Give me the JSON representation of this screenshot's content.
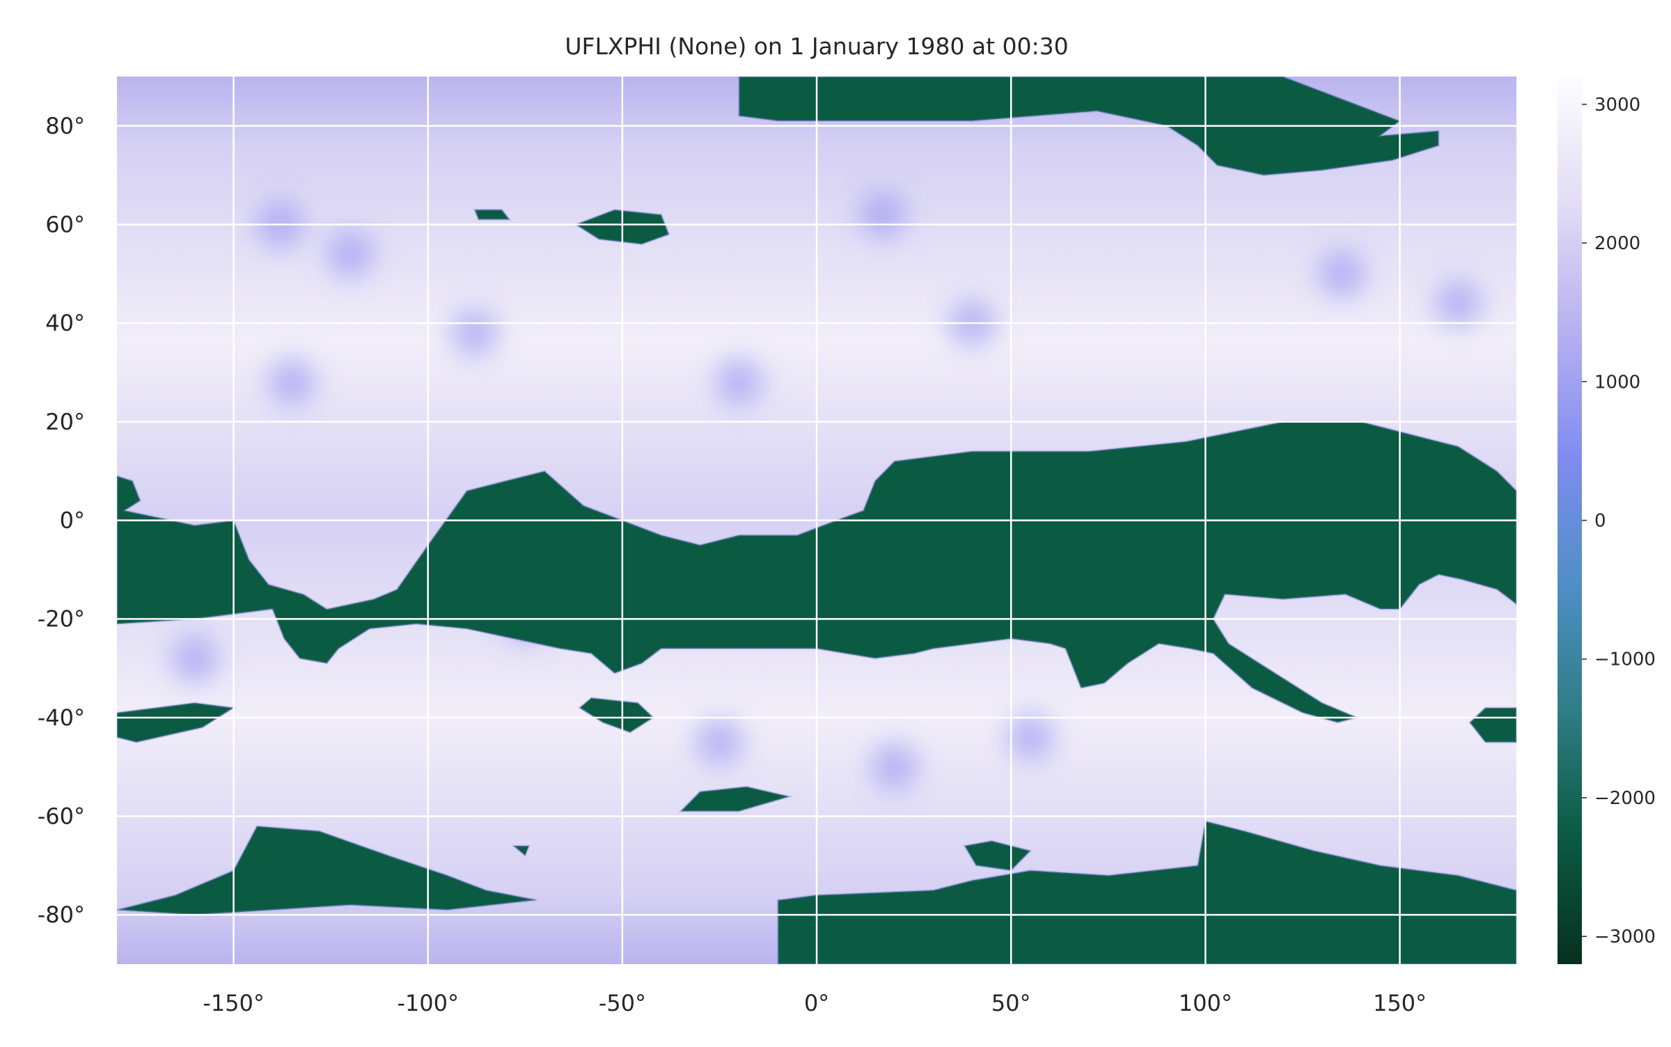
{
  "chart_data": {
    "type": "heatmap",
    "title": "UFLXPHI (None) on 1 January 1980 at 00:30",
    "xlabel": "",
    "ylabel": "",
    "xlim": [
      -180,
      180
    ],
    "ylim": [
      -90,
      90
    ],
    "grid": true,
    "x_ticks": [
      -150,
      -100,
      -50,
      0,
      50,
      100,
      150
    ],
    "x_tick_labels": [
      "-150°",
      "-100°",
      "-50°",
      "0°",
      "50°",
      "100°",
      "150°"
    ],
    "y_ticks": [
      80,
      60,
      40,
      20,
      0,
      -20,
      -40,
      -60,
      -80
    ],
    "y_tick_labels": [
      "80°",
      "60°",
      "40°",
      "20°",
      "0°",
      "-20°",
      "-40°",
      "-60°",
      "-80°"
    ],
    "colorbar": {
      "vmin": -3200,
      "vmax": 3200,
      "ticks": [
        3000,
        2000,
        1000,
        0,
        -1000,
        -2000,
        -3000
      ],
      "tick_labels": [
        "3000",
        "2000",
        "1000",
        "0",
        "−1000",
        "−2000",
        "−3000"
      ],
      "colors": [
        "#06301e",
        "#0b5a42",
        "#2f7d86",
        "#4f8fc6",
        "#7f8cf0",
        "#b7b1f1",
        "#e2ddf4",
        "#fdfcff"
      ]
    },
    "field_colors": {
      "negative": "#0b5a42",
      "positive_low": "#b9b4ee",
      "positive_mid": "#d6d1f3",
      "positive_high": "#f1eef9",
      "accent": "#8e8cf2"
    },
    "negative_regions": [
      {
        "name": "arctic-top",
        "points": [
          [
            -20,
            90
          ],
          [
            120,
            90
          ],
          [
            140,
            84
          ],
          [
            150,
            81
          ],
          [
            145,
            78
          ],
          [
            160,
            79
          ],
          [
            160,
            76
          ],
          [
            148,
            73
          ],
          [
            130,
            71
          ],
          [
            115,
            70
          ],
          [
            103,
            72
          ],
          [
            98,
            76
          ],
          [
            90,
            80
          ],
          [
            72,
            83
          ],
          [
            40,
            81
          ],
          [
            10,
            81
          ],
          [
            -10,
            81
          ],
          [
            -20,
            82
          ]
        ]
      },
      {
        "name": "arctic-blob-a",
        "points": [
          [
            -62,
            60
          ],
          [
            -52,
            63
          ],
          [
            -40,
            62
          ],
          [
            -38,
            58
          ],
          [
            -45,
            56
          ],
          [
            -56,
            57
          ]
        ]
      },
      {
        "name": "arctic-blob-b",
        "points": [
          [
            -88,
            63
          ],
          [
            -81,
            63
          ],
          [
            -79,
            61
          ],
          [
            -87,
            61
          ]
        ]
      },
      {
        "name": "tropical-belt",
        "points": [
          [
            -180,
            9
          ],
          [
            -176,
            8
          ],
          [
            -174,
            4
          ],
          [
            -178,
            2
          ],
          [
            -160,
            -1
          ],
          [
            -150,
            0
          ],
          [
            -146,
            -8
          ],
          [
            -141,
            -13
          ],
          [
            -132,
            -15
          ],
          [
            -126,
            -18
          ],
          [
            -114,
            -16
          ],
          [
            -108,
            -14
          ],
          [
            -100,
            -5
          ],
          [
            -90,
            6
          ],
          [
            -80,
            8
          ],
          [
            -70,
            10
          ],
          [
            -60,
            3
          ],
          [
            -50,
            0
          ],
          [
            -40,
            -3
          ],
          [
            -30,
            -5
          ],
          [
            -20,
            -3
          ],
          [
            -5,
            -3
          ],
          [
            5,
            0
          ],
          [
            12,
            2
          ],
          [
            15,
            8
          ],
          [
            20,
            12
          ],
          [
            40,
            14
          ],
          [
            70,
            14
          ],
          [
            95,
            16
          ],
          [
            120,
            20
          ],
          [
            140,
            20
          ],
          [
            150,
            18
          ],
          [
            165,
            15
          ],
          [
            175,
            10
          ],
          [
            180,
            6
          ],
          [
            180,
            -17
          ],
          [
            175,
            -14
          ],
          [
            166,
            -12
          ],
          [
            160,
            -11
          ],
          [
            155,
            -13
          ],
          [
            150,
            -18
          ],
          [
            145,
            -18
          ],
          [
            136,
            -15
          ],
          [
            120,
            -16
          ],
          [
            105,
            -15
          ],
          [
            102,
            -20
          ],
          [
            106,
            -25
          ],
          [
            118,
            -31
          ],
          [
            130,
            -37
          ],
          [
            139,
            -40
          ],
          [
            134,
            -41
          ],
          [
            125,
            -39
          ],
          [
            112,
            -34
          ],
          [
            102,
            -27
          ],
          [
            96,
            -26
          ],
          [
            88,
            -25
          ],
          [
            80,
            -29
          ],
          [
            74,
            -33
          ],
          [
            68,
            -34
          ],
          [
            64,
            -26
          ],
          [
            60,
            -25
          ],
          [
            50,
            -24
          ],
          [
            40,
            -25
          ],
          [
            30,
            -26
          ],
          [
            25,
            -27
          ],
          [
            15,
            -28
          ],
          [
            0,
            -26
          ],
          [
            -20,
            -26
          ],
          [
            -40,
            -26
          ],
          [
            -45,
            -29
          ],
          [
            -52,
            -31
          ],
          [
            -58,
            -27
          ],
          [
            -66,
            -26
          ],
          [
            -72,
            -25
          ],
          [
            -90,
            -22
          ],
          [
            -103,
            -21
          ],
          [
            -115,
            -22
          ],
          [
            -123,
            -26
          ],
          [
            -126,
            -29
          ],
          [
            -133,
            -28
          ],
          [
            -137,
            -24
          ],
          [
            -140,
            -18
          ],
          [
            -150,
            -19
          ],
          [
            -160,
            -20
          ],
          [
            -180,
            -21
          ]
        ]
      },
      {
        "name": "south-blob-40",
        "points": [
          [
            -58,
            -36
          ],
          [
            -46,
            -37
          ],
          [
            -42,
            -40
          ],
          [
            -48,
            -43
          ],
          [
            -55,
            -41
          ],
          [
            -61,
            -38
          ]
        ]
      },
      {
        "name": "west-edge-40",
        "points": [
          [
            -180,
            -39
          ],
          [
            -160,
            -37
          ],
          [
            -150,
            -38
          ],
          [
            -158,
            -42
          ],
          [
            -175,
            -45
          ],
          [
            -180,
            -44
          ]
        ]
      },
      {
        "name": "east-edge-40",
        "points": [
          [
            180,
            -38
          ],
          [
            172,
            -38
          ],
          [
            168,
            -41
          ],
          [
            172,
            -45
          ],
          [
            180,
            -45
          ]
        ]
      },
      {
        "name": "south-blob-60",
        "points": [
          [
            -30,
            -55
          ],
          [
            -18,
            -54
          ],
          [
            -7,
            -56
          ],
          [
            -20,
            -59
          ],
          [
            -35,
            -59
          ]
        ]
      },
      {
        "name": "south-blob-65",
        "points": [
          [
            -78,
            -66
          ],
          [
            -74,
            -66
          ],
          [
            -75,
            -68
          ]
        ]
      },
      {
        "name": "antarctic-west",
        "points": [
          [
            -180,
            -79
          ],
          [
            -165,
            -76
          ],
          [
            -150,
            -71
          ],
          [
            -144,
            -62
          ],
          [
            -128,
            -63
          ],
          [
            -110,
            -68
          ],
          [
            -95,
            -72
          ],
          [
            -85,
            -75
          ],
          [
            -72,
            -77
          ],
          [
            -95,
            -79
          ],
          [
            -120,
            -78
          ],
          [
            -140,
            -79
          ],
          [
            -160,
            -80
          ]
        ]
      },
      {
        "name": "antarctic-east",
        "points": [
          [
            -10,
            -77
          ],
          [
            0,
            -76
          ],
          [
            30,
            -75
          ],
          [
            40,
            -73
          ],
          [
            55,
            -71
          ],
          [
            75,
            -72
          ],
          [
            98,
            -70
          ],
          [
            100,
            -61
          ],
          [
            110,
            -63
          ],
          [
            128,
            -67
          ],
          [
            145,
            -70
          ],
          [
            165,
            -72
          ],
          [
            180,
            -75
          ],
          [
            180,
            -90
          ],
          [
            -10,
            -90
          ]
        ]
      },
      {
        "name": "antarctic-blob",
        "points": [
          [
            38,
            -66
          ],
          [
            45,
            -65
          ],
          [
            55,
            -67
          ],
          [
            50,
            -71
          ],
          [
            41,
            -70
          ]
        ]
      }
    ],
    "highlight_spots": [
      [
        -135,
        28
      ],
      [
        -88,
        38
      ],
      [
        -20,
        28
      ],
      [
        17,
        62
      ],
      [
        40,
        40
      ],
      [
        135,
        50
      ],
      [
        165,
        44
      ],
      [
        -120,
        54
      ],
      [
        20,
        -50
      ],
      [
        55,
        -44
      ],
      [
        -138,
        60
      ],
      [
        -75,
        -20
      ],
      [
        -25,
        -45
      ],
      [
        -160,
        -28
      ]
    ]
  }
}
